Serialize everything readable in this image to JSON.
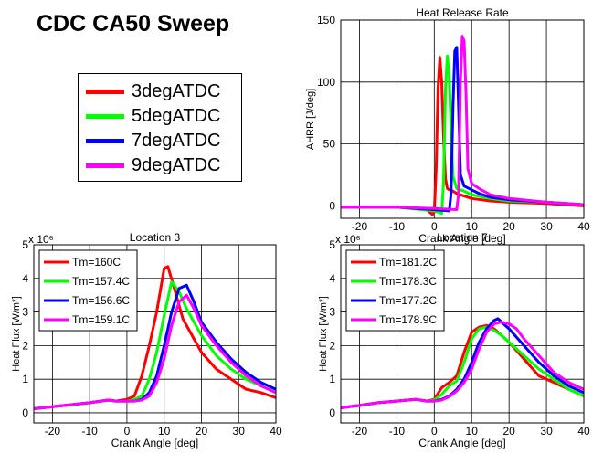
{
  "figure": {
    "title": "CDC CA50 Sweep",
    "legend": [
      {
        "label": "3degATDC",
        "color": "#ff0000"
      },
      {
        "label": "5degATDC",
        "color": "#00ff00"
      },
      {
        "label": "7degATDC",
        "color": "#0000ff"
      },
      {
        "label": "9degATDC",
        "color": "#ff00ff"
      }
    ]
  },
  "chart_data": [
    {
      "type": "line",
      "title": "Heat Release Rate",
      "xlabel": "Crank Angle [deg]",
      "ylabel": "AHRR [J/deg]",
      "xlim": [
        -25,
        40
      ],
      "ylim": [
        -10,
        150
      ],
      "xticks": [
        -20,
        -10,
        0,
        10,
        20,
        30,
        40
      ],
      "yticks": [
        0,
        50,
        100,
        150
      ],
      "grid": true,
      "series": [
        {
          "color": "#ff0000",
          "x": [
            -25,
            -10,
            -2,
            -0.5,
            0,
            0.5,
            1,
            1.5,
            2,
            2.5,
            3,
            3.5,
            4,
            5,
            6,
            8,
            10,
            15,
            20,
            30,
            40
          ],
          "y": [
            -1,
            -1,
            -3,
            -7,
            -5,
            30,
            95,
            120,
            100,
            55,
            22,
            14,
            13,
            12,
            10,
            8,
            6,
            4,
            3,
            2,
            0
          ]
        },
        {
          "color": "#00ff00",
          "x": [
            -25,
            -10,
            0,
            2,
            2.5,
            3,
            3.5,
            4,
            4.5,
            5,
            6,
            8,
            10,
            15,
            20,
            30,
            40
          ],
          "y": [
            -1,
            -1,
            -4,
            -6,
            20,
            95,
            121,
            105,
            60,
            24,
            14,
            12,
            9,
            6,
            4,
            3,
            1
          ]
        },
        {
          "color": "#0000ff",
          "x": [
            -25,
            -10,
            0,
            4,
            4.5,
            5,
            5.5,
            6,
            6.5,
            7,
            8,
            10,
            12,
            15,
            20,
            30,
            40
          ],
          "y": [
            -1,
            -1,
            -3,
            -4,
            10,
            80,
            125,
            128,
            80,
            25,
            16,
            13,
            10,
            7,
            5,
            3,
            1
          ]
        },
        {
          "color": "#ff00ff",
          "x": [
            -25,
            -10,
            0,
            6,
            6.5,
            7,
            7.5,
            8,
            8.5,
            9,
            10,
            12,
            15,
            20,
            30,
            40
          ],
          "y": [
            -1,
            -1,
            -2,
            -3,
            10,
            100,
            137,
            133,
            90,
            30,
            18,
            14,
            9,
            6,
            3,
            1
          ]
        }
      ]
    },
    {
      "type": "line",
      "title": "Location 3",
      "xlabel": "Crank Angle [deg]",
      "ylabel": "Heat Flux [W/m²]",
      "y_multiplier": "x 10⁶",
      "xlim": [
        -25,
        40
      ],
      "ylim": [
        -0.3,
        5
      ],
      "xticks": [
        -20,
        -10,
        0,
        10,
        20,
        30,
        40
      ],
      "yticks": [
        0,
        1,
        2,
        3,
        4,
        5
      ],
      "grid": true,
      "legend": [
        "Tm=160C",
        "Tm=157.4C",
        "Tm=156.6C",
        "Tm=159.1C"
      ],
      "series": [
        {
          "color": "#ff0000",
          "x": [
            -25,
            -20,
            -15,
            -10,
            -5,
            -3,
            0,
            2,
            4,
            6,
            8,
            10,
            11,
            13,
            15,
            18,
            20,
            24,
            28,
            32,
            36,
            40
          ],
          "y": [
            0.12,
            0.18,
            0.24,
            0.3,
            0.38,
            0.35,
            0.4,
            0.5,
            1.1,
            2.0,
            3.0,
            4.3,
            4.35,
            3.6,
            2.8,
            2.2,
            1.8,
            1.3,
            1.0,
            0.7,
            0.6,
            0.45
          ]
        },
        {
          "color": "#00ff00",
          "x": [
            -25,
            -20,
            -15,
            -10,
            -5,
            -3,
            0,
            2,
            4,
            6,
            8,
            10,
            12,
            14,
            16,
            20,
            24,
            28,
            32,
            36,
            40
          ],
          "y": [
            0.12,
            0.18,
            0.24,
            0.3,
            0.38,
            0.35,
            0.35,
            0.4,
            0.5,
            1.0,
            1.8,
            2.9,
            3.9,
            3.6,
            3.1,
            2.3,
            1.7,
            1.3,
            1.0,
            0.8,
            0.6
          ]
        },
        {
          "color": "#0000ff",
          "x": [
            -25,
            -20,
            -15,
            -10,
            -5,
            -3,
            0,
            2,
            4,
            6,
            8,
            10,
            12,
            14,
            16,
            18,
            20,
            24,
            28,
            32,
            36,
            40
          ],
          "y": [
            0.12,
            0.18,
            0.24,
            0.3,
            0.38,
            0.35,
            0.35,
            0.35,
            0.4,
            0.6,
            1.1,
            2.0,
            3.0,
            3.7,
            3.8,
            3.3,
            2.7,
            2.1,
            1.6,
            1.2,
            0.9,
            0.7
          ]
        },
        {
          "color": "#ff00ff",
          "x": [
            -25,
            -20,
            -15,
            -10,
            -5,
            -3,
            0,
            2,
            4,
            6,
            8,
            10,
            12,
            14,
            16,
            18,
            20,
            24,
            28,
            32,
            36,
            40
          ],
          "y": [
            0.12,
            0.18,
            0.24,
            0.3,
            0.38,
            0.35,
            0.35,
            0.35,
            0.38,
            0.5,
            0.9,
            1.6,
            2.6,
            3.3,
            3.5,
            3.1,
            2.6,
            2.0,
            1.5,
            1.1,
            0.8,
            0.6
          ]
        }
      ]
    },
    {
      "type": "line",
      "title": "Location 7",
      "xlabel": "Crank Angle [deg]",
      "ylabel": "Heat Flux [W/m²]",
      "y_multiplier": "x 10⁶",
      "xlim": [
        -25,
        40
      ],
      "ylim": [
        -0.3,
        5
      ],
      "xticks": [
        -20,
        -10,
        0,
        10,
        20,
        30,
        40
      ],
      "yticks": [
        0,
        1,
        2,
        3,
        4,
        5
      ],
      "grid": true,
      "legend": [
        "Tm=181.2C",
        "Tm=178.3C",
        "Tm=177.2C",
        "Tm=178.9C"
      ],
      "series": [
        {
          "color": "#ff0000",
          "x": [
            -25,
            -20,
            -15,
            -10,
            -5,
            -2,
            0,
            2,
            4,
            6,
            8,
            10,
            12,
            14,
            16,
            18,
            20,
            24,
            28,
            32,
            36,
            40
          ],
          "y": [
            0.15,
            0.22,
            0.3,
            0.35,
            0.4,
            0.35,
            0.4,
            0.75,
            0.9,
            1.1,
            1.8,
            2.4,
            2.55,
            2.6,
            2.5,
            2.3,
            2.1,
            1.6,
            1.1,
            0.9,
            0.7,
            0.5
          ]
        },
        {
          "color": "#00ff00",
          "x": [
            -25,
            -20,
            -15,
            -10,
            -5,
            -2,
            0,
            2,
            4,
            6,
            8,
            10,
            12,
            14,
            16,
            18,
            20,
            24,
            28,
            32,
            36,
            40
          ],
          "y": [
            0.15,
            0.22,
            0.3,
            0.35,
            0.4,
            0.35,
            0.38,
            0.55,
            0.8,
            0.95,
            1.5,
            2.2,
            2.5,
            2.55,
            2.45,
            2.3,
            2.1,
            1.7,
            1.3,
            1.0,
            0.7,
            0.5
          ]
        },
        {
          "color": "#0000ff",
          "x": [
            -25,
            -20,
            -15,
            -10,
            -5,
            -2,
            0,
            2,
            4,
            6,
            8,
            10,
            12,
            14,
            16,
            17,
            18,
            20,
            24,
            28,
            32,
            36,
            40
          ],
          "y": [
            0.15,
            0.22,
            0.3,
            0.35,
            0.4,
            0.35,
            0.35,
            0.4,
            0.5,
            0.7,
            1.0,
            1.5,
            2.1,
            2.5,
            2.75,
            2.8,
            2.7,
            2.5,
            2.0,
            1.5,
            1.1,
            0.8,
            0.6
          ]
        },
        {
          "color": "#ff00ff",
          "x": [
            -25,
            -20,
            -15,
            -10,
            -5,
            -2,
            0,
            2,
            4,
            6,
            8,
            10,
            12,
            14,
            16,
            18,
            20,
            22,
            24,
            28,
            32,
            36,
            40
          ],
          "y": [
            0.15,
            0.22,
            0.3,
            0.35,
            0.4,
            0.35,
            0.35,
            0.38,
            0.48,
            0.65,
            0.9,
            1.3,
            1.9,
            2.4,
            2.65,
            2.7,
            2.65,
            2.5,
            2.2,
            1.7,
            1.2,
            0.9,
            0.7
          ]
        }
      ]
    }
  ]
}
